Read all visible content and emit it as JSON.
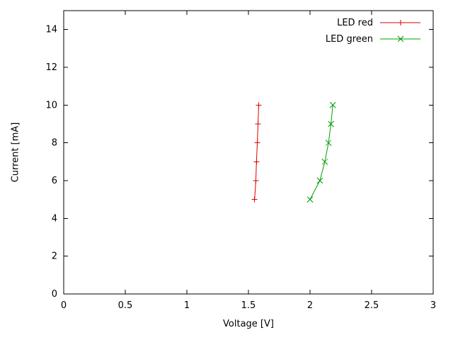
{
  "frame": {
    "background": "#ffffff",
    "axis_color": "#000000",
    "tick_length": 6
  },
  "chart_data": {
    "type": "line",
    "title": "",
    "xlabel": "Voltage [V]",
    "ylabel": "Current [mA]",
    "xlim": [
      0,
      3
    ],
    "ylim": [
      0,
      15
    ],
    "grid": false,
    "legend_position": "top-right",
    "xticks": {
      "values": [
        0,
        0.5,
        1,
        1.5,
        2,
        2.5,
        3
      ],
      "labels": [
        "0",
        "0.5",
        "1",
        "1.5",
        "2",
        "2.5",
        "3"
      ]
    },
    "yticks": {
      "values": [
        0,
        2,
        4,
        6,
        8,
        10,
        12,
        14
      ],
      "labels": [
        "0",
        "2",
        "4",
        "6",
        "8",
        "10",
        "12",
        "14"
      ]
    },
    "series": [
      {
        "name": "LED red",
        "color": "#dd0000",
        "marker": "plus",
        "points": [
          [
            1.55,
            5
          ],
          [
            1.56,
            6
          ],
          [
            1.565,
            7
          ],
          [
            1.572,
            8
          ],
          [
            1.578,
            9
          ],
          [
            1.583,
            10
          ]
        ]
      },
      {
        "name": "LED green",
        "color": "#00a000",
        "marker": "x",
        "points": [
          [
            2.0,
            5
          ],
          [
            2.08,
            6
          ],
          [
            2.12,
            7
          ],
          [
            2.15,
            8
          ],
          [
            2.17,
            9
          ],
          [
            2.185,
            10
          ]
        ]
      }
    ]
  }
}
